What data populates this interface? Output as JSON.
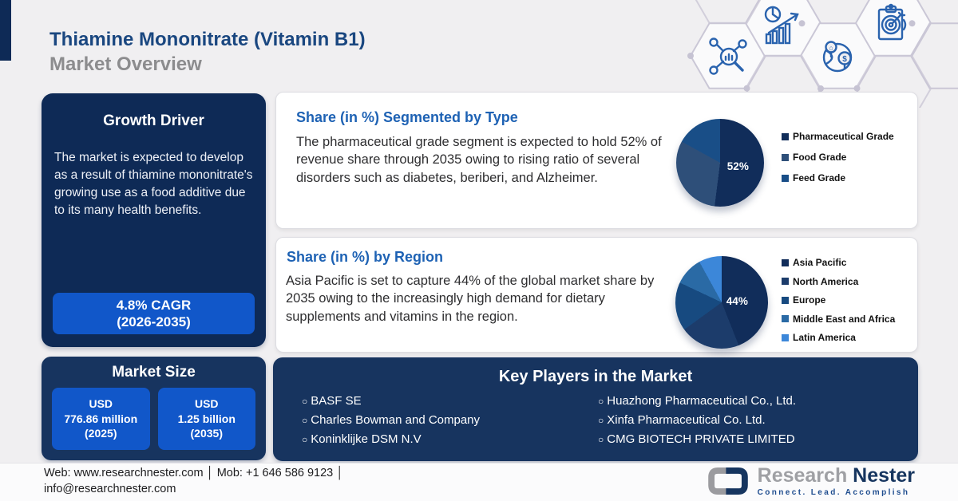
{
  "header": {
    "title_line1": "Thiamine Mononitrate (Vitamin B1)",
    "title_line2": "Market Overview"
  },
  "growth_driver": {
    "title": "Growth Driver",
    "body": "The market is expected to develop as a result of thiamine mononitrate's growing use as a food additive due to its many health benefits.",
    "cagr_line1": "4.8% CAGR",
    "cagr_line2": "(2026-2035)"
  },
  "market_size": {
    "title": "Market Size",
    "boxes": [
      {
        "line1": "USD",
        "line2": "776.86 million",
        "line3": "(2025)"
      },
      {
        "line1": "USD",
        "line2": "1.25 billion",
        "line3": "(2035)"
      }
    ]
  },
  "type_card": {
    "title": "Share (in %) Segmented by Type",
    "body": "The pharmaceutical grade segment is expected to hold 52% of revenue share through 2035 owing to rising ratio of several disorders such as diabetes, beriberi, and Alzheimer.",
    "pie_label": "52%"
  },
  "region_card": {
    "title": "Share (in %) by Region",
    "body": "Asia Pacific is set to capture 44% of the global market share by 2035 owing to the increasingly high demand for dietary supplements and vitamins in the region.",
    "pie_label": "44%"
  },
  "key_players": {
    "title": "Key Players in the Market",
    "left": [
      "BASF SE",
      "Charles Bowman and Company",
      "Koninklijke DSM N.V"
    ],
    "right": [
      "Huazhong Pharmaceutical Co., Ltd.",
      "Xinfa Pharmaceutical Co. Ltd.",
      "CMG BIOTECH PRIVATE LIMITED"
    ]
  },
  "footer": {
    "line1": "Web: www.researchnester.com │ Mob: +1 646 586 9123 │",
    "line2": "info@researchnester.com",
    "logo_word1": "Research",
    "logo_word2": "Nester",
    "tagline": "Connect. Lead. Accomplish"
  },
  "icons": [
    "market-research-network-icon",
    "growth-chart-icon",
    "global-market-icon",
    "target-clipboard-icon",
    "circle-bullet-icon",
    "chain-link-logo-icon"
  ],
  "colors": {
    "accent_navy": "#0e2a56",
    "panel_navy": "#17345f",
    "bright_blue": "#1157c9",
    "heading_blue": "#1a4780",
    "card_title_blue": "#1e62b4",
    "subtitle_gray": "#8c8c8e"
  },
  "chart_data": [
    {
      "type": "pie",
      "title": "Share (in %) Segmented by Type",
      "labels": [
        "Pharmaceutical Grade",
        "Food Grade",
        "Feed Grade"
      ],
      "values": [
        52,
        31,
        17
      ],
      "colors": [
        "#112d5a",
        "#2e4f79",
        "#194e87"
      ],
      "data_label": "52%",
      "legend_position": "right"
    },
    {
      "type": "pie",
      "title": "Share (in %) by Region",
      "labels": [
        "Asia Pacific",
        "North America",
        "Europe",
        "Middle East and Africa",
        "Latin America"
      ],
      "values": [
        44,
        21,
        17,
        10,
        8
      ],
      "colors": [
        "#112d5a",
        "#1c3c6b",
        "#174a80",
        "#2a6aa5",
        "#3c87d9"
      ],
      "data_label": "44%",
      "legend_position": "right"
    }
  ]
}
